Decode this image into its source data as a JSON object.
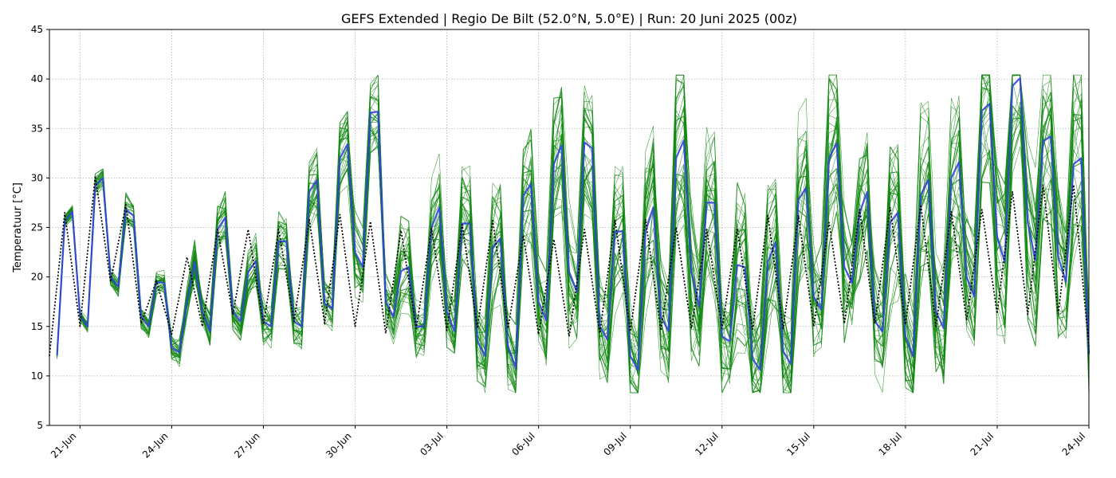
{
  "chart_data": {
    "type": "line",
    "title": "GEFS Extended | Regio De Bilt (52.0°N, 5.0°E) | Run: 20 Juni 2025 (00z)",
    "xlabel": "",
    "ylabel": "Temperatuur [°C]",
    "ylim": [
      5,
      45
    ],
    "xlim": [
      "2025-06-20T00:00",
      "2025-07-24T00:00"
    ],
    "y_ticks": [
      5,
      10,
      15,
      20,
      25,
      30,
      35,
      40,
      45
    ],
    "x_tick_labels": [
      "21-Jun",
      "24-Jun",
      "27-Jun",
      "30-Jun",
      "03-Jul",
      "06-Jul",
      "09-Jul",
      "12-Jul",
      "15-Jul",
      "18-Jul",
      "21-Jul",
      "24-Jul"
    ],
    "x_tick_dates": [
      "2025-06-21",
      "2025-06-24",
      "2025-06-27",
      "2025-06-30",
      "2025-07-03",
      "2025-07-06",
      "2025-07-09",
      "2025-07-12",
      "2025-07-15",
      "2025-07-18",
      "2025-07-21",
      "2025-07-24"
    ],
    "grid": true,
    "grid_style": "dotted",
    "legend": "none",
    "colors": {
      "control": "#3344dd",
      "ensemble": "#118811",
      "mean": "#000000"
    },
    "series": [
      {
        "role": "control",
        "times": [
          "2025-06-20T06",
          "2025-06-20T12",
          "2025-06-20T18",
          "2025-06-21T00",
          "2025-06-21T06",
          "2025-06-21T12",
          "2025-06-21T18",
          "2025-06-22T00",
          "2025-06-22T06",
          "2025-06-22T12",
          "2025-06-22T18",
          "2025-06-23T00",
          "2025-06-23T06",
          "2025-06-23T12",
          "2025-06-23T18",
          "2025-06-24T00",
          "2025-06-24T06",
          "2025-06-24T12",
          "2025-06-24T18",
          "2025-06-25T00",
          "2025-06-25T06",
          "2025-06-25T12",
          "2025-06-25T18",
          "2025-06-26T00",
          "2025-06-26T06",
          "2025-06-26T12",
          "2025-06-26T18",
          "2025-06-27T00",
          "2025-06-27T06",
          "2025-06-27T12",
          "2025-06-27T18",
          "2025-06-28T00",
          "2025-06-28T06",
          "2025-06-28T12",
          "2025-06-28T18",
          "2025-06-29T00",
          "2025-06-29T06",
          "2025-06-29T12",
          "2025-06-29T18",
          "2025-06-30T00",
          "2025-06-30T06",
          "2025-06-30T12",
          "2025-06-30T18",
          "2025-07-01T00",
          "2025-07-01T06",
          "2025-07-01T12",
          "2025-07-01T18",
          "2025-07-02T00",
          "2025-07-02T06",
          "2025-07-02T12",
          "2025-07-02T18",
          "2025-07-03T00",
          "2025-07-03T06",
          "2025-07-03T12",
          "2025-07-03T18",
          "2025-07-04T00",
          "2025-07-04T06",
          "2025-07-04T12",
          "2025-07-04T18",
          "2025-07-05T00",
          "2025-07-05T06",
          "2025-07-05T12",
          "2025-07-05T18",
          "2025-07-06T00",
          "2025-07-06T06",
          "2025-07-06T12",
          "2025-07-06T18",
          "2025-07-07T00",
          "2025-07-07T06",
          "2025-07-07T12",
          "2025-07-07T18",
          "2025-07-08T00",
          "2025-07-08T06",
          "2025-07-08T12",
          "2025-07-08T18",
          "2025-07-09T00",
          "2025-07-09T06",
          "2025-07-09T12",
          "2025-07-09T18",
          "2025-07-10T00",
          "2025-07-10T06",
          "2025-07-10T12",
          "2025-07-10T18",
          "2025-07-11T00",
          "2025-07-11T06",
          "2025-07-11T12",
          "2025-07-11T18",
          "2025-07-12T00",
          "2025-07-12T06",
          "2025-07-12T12",
          "2025-07-12T18",
          "2025-07-13T00",
          "2025-07-13T06",
          "2025-07-13T12",
          "2025-07-13T18",
          "2025-07-14T00",
          "2025-07-14T06",
          "2025-07-14T12",
          "2025-07-14T18",
          "2025-07-15T00",
          "2025-07-15T06",
          "2025-07-15T12",
          "2025-07-15T18",
          "2025-07-16T00",
          "2025-07-16T06",
          "2025-07-16T12",
          "2025-07-16T18",
          "2025-07-17T00",
          "2025-07-17T06",
          "2025-07-17T12",
          "2025-07-17T18",
          "2025-07-18T00",
          "2025-07-18T06",
          "2025-07-18T12",
          "2025-07-18T18",
          "2025-07-19T00",
          "2025-07-19T06",
          "2025-07-19T12",
          "2025-07-19T18",
          "2025-07-20T00",
          "2025-07-20T06",
          "2025-07-20T12",
          "2025-07-20T18",
          "2025-07-21T00",
          "2025-07-21T06",
          "2025-07-21T12",
          "2025-07-21T18",
          "2025-07-22T00",
          "2025-07-22T06",
          "2025-07-22T12",
          "2025-07-22T18",
          "2025-07-23T00",
          "2025-07-23T06",
          "2025-07-23T12",
          "2025-07-23T18",
          "2025-07-24T00"
        ],
        "values": [
          12.1,
          25.6,
          26.6,
          16.0,
          15.0,
          29.2,
          30.0,
          20.0,
          19.0,
          26.8,
          26.2,
          16.0,
          15.0,
          19.5,
          19.4,
          12.8,
          12.4,
          17.5,
          21.5,
          16.5,
          14.5,
          24.8,
          26.0,
          16.5,
          15.5,
          20.5,
          21.6,
          15.5,
          15.0,
          23.6,
          23.6,
          15.5,
          15.0,
          28.6,
          29.8,
          17.3,
          16.8,
          32.0,
          33.4,
          22.5,
          21.0,
          36.6,
          36.7,
          17.5,
          16.0,
          20.6,
          21.0,
          15.0,
          15.0,
          25.0,
          27.0,
          16.5,
          14.5,
          25.4,
          25.4,
          13.5,
          12.0,
          23.0,
          23.9,
          13.0,
          10.8,
          28.2,
          29.4,
          17.5,
          15.6,
          31.4,
          33.3,
          20.5,
          18.5,
          33.6,
          33.0,
          15.0,
          13.7,
          24.6,
          24.6,
          12.0,
          10.6,
          24.6,
          27.0,
          16.0,
          14.5,
          32.0,
          33.8,
          20.5,
          17.0,
          27.5,
          27.5,
          14.0,
          13.5,
          21.2,
          21.0,
          11.7,
          10.6,
          21.5,
          23.5,
          12.5,
          11.2,
          27.8,
          29.0,
          18.0,
          16.7,
          32.0,
          33.5,
          21.0,
          19.4,
          26.5,
          28.6,
          15.5,
          14.5,
          25.5,
          26.5,
          14.0,
          12.0,
          28.3,
          29.8,
          16.5,
          14.8,
          30.0,
          31.6,
          20.0,
          18.0,
          36.8,
          37.5,
          24.0,
          21.5,
          39.3,
          40.1,
          25.5,
          21.7,
          33.7,
          34.2,
          22.0,
          19.5,
          31.4,
          32.0,
          12.2
        ]
      },
      {
        "role": "mean",
        "times": [
          "2025-06-20T00",
          "2025-06-20T12",
          "2025-06-21T00",
          "2025-06-21T12",
          "2025-06-22T00",
          "2025-06-22T12",
          "2025-06-23T00",
          "2025-06-23T12",
          "2025-06-24T00",
          "2025-06-24T12",
          "2025-06-25T00",
          "2025-06-25T12",
          "2025-06-26T00",
          "2025-06-26T12",
          "2025-06-27T00",
          "2025-06-27T12",
          "2025-06-28T00",
          "2025-06-28T12",
          "2025-06-29T00",
          "2025-06-29T12",
          "2025-06-30T00",
          "2025-06-30T12",
          "2025-07-01T00",
          "2025-07-01T12",
          "2025-07-02T00",
          "2025-07-02T12",
          "2025-07-03T00",
          "2025-07-03T12",
          "2025-07-04T00",
          "2025-07-04T12",
          "2025-07-05T00",
          "2025-07-05T12",
          "2025-07-06T00",
          "2025-07-06T12",
          "2025-07-07T00",
          "2025-07-07T12",
          "2025-07-08T00",
          "2025-07-08T12",
          "2025-07-09T00",
          "2025-07-09T12",
          "2025-07-10T00",
          "2025-07-10T12",
          "2025-07-11T00",
          "2025-07-11T12",
          "2025-07-12T00",
          "2025-07-12T12",
          "2025-07-13T00",
          "2025-07-13T12",
          "2025-07-14T00",
          "2025-07-14T12",
          "2025-07-15T00",
          "2025-07-15T12",
          "2025-07-16T00",
          "2025-07-16T12",
          "2025-07-17T00",
          "2025-07-17T12",
          "2025-07-18T00",
          "2025-07-18T12",
          "2025-07-19T00",
          "2025-07-19T12",
          "2025-07-20T00",
          "2025-07-20T12",
          "2025-07-21T00",
          "2025-07-21T12",
          "2025-07-22T00",
          "2025-07-22T12",
          "2025-07-23T00",
          "2025-07-23T12",
          "2025-07-24T00"
        ],
        "values": [
          12.0,
          26.5,
          15.0,
          30.2,
          19.5,
          27.3,
          15.3,
          19.6,
          14.2,
          22.0,
          15.0,
          24.8,
          16.2,
          24.8,
          15.2,
          24.8,
          15.5,
          25.8,
          15.3,
          26.3,
          15.0,
          25.6,
          14.3,
          24.7,
          14.8,
          24.9,
          14.6,
          25.3,
          14.8,
          25.7,
          14.8,
          24.2,
          14.2,
          23.8,
          14.0,
          24.8,
          14.3,
          25.8,
          14.5,
          25.8,
          14.6,
          25.0,
          14.8,
          24.8,
          14.8,
          24.9,
          14.7,
          26.2,
          14.8,
          26.2,
          15.0,
          25.5,
          15.3,
          26.8,
          15.3,
          27.0,
          15.2,
          27.3,
          15.0,
          26.6,
          15.6,
          26.8,
          16.3,
          28.6,
          16.2,
          29.3,
          16.3,
          29.3,
          13.0
        ]
      }
    ],
    "ensemble": {
      "members": 30,
      "description_values": "perturbed members spread around the control run",
      "envelope_max": [
        26.6,
        32.3,
        27.0,
        31.7,
        22.0,
        26.0,
        34.5,
        35.3,
        33.0,
        34.2,
        34.5,
        39.2,
        35.0,
        36.5,
        28.5,
        39.2,
        33.5,
        34.4,
        35.0,
        37.8,
        36.3,
        38.2,
        35.2,
        38.1,
        40.3,
        36.8,
        36.5,
        36.9,
        36.3,
        38.2,
        37.3,
        37.2,
        37.5,
        39.0
      ],
      "envelope_min": [
        11.7,
        13.0,
        16.6,
        14.2,
        11.5,
        11.4,
        11.0,
        12.0,
        8.5,
        10.0,
        10.0,
        10.2,
        9.6,
        9.2,
        9.6,
        9.8,
        10.6,
        11.0,
        10.7,
        10.5,
        10.3,
        10.5,
        9.6,
        11.8,
        11.9,
        12.0,
        11.0,
        10.6,
        11.1,
        10.7,
        11.1,
        11.1,
        11.4,
        12.0
      ]
    }
  }
}
